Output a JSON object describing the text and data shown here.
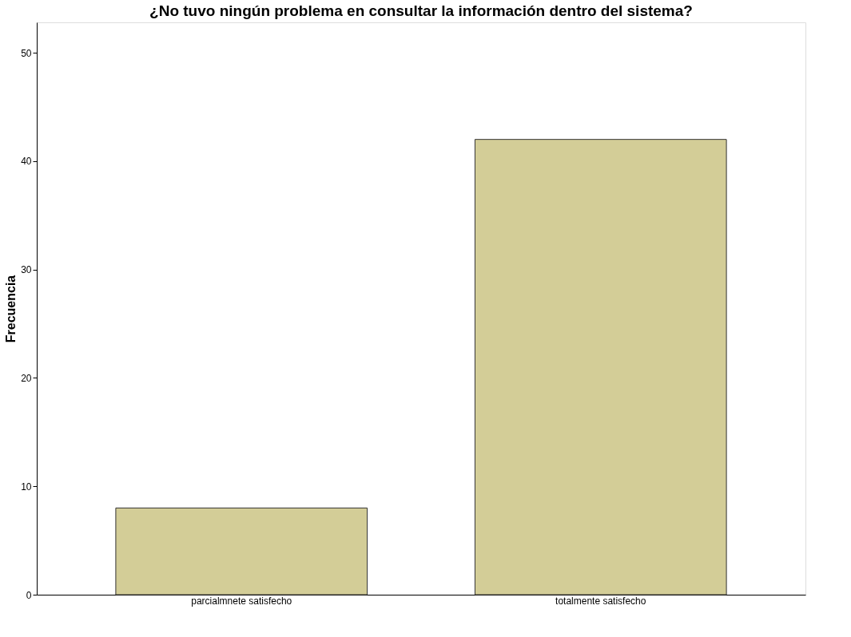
{
  "chart_data": {
    "type": "bar",
    "title": "¿No tuvo ningún  problema en consultar la información dentro del sistema?",
    "ylabel": "Frecuencia",
    "categories": [
      "parcialmnete satisfecho",
      "totalmente satisfecho"
    ],
    "values": [
      8,
      42
    ],
    "color": "#d3cd97",
    "ylim": [
      0,
      52.8
    ],
    "yticks": [
      0,
      10,
      20,
      30,
      40,
      50
    ],
    "grid": false
  }
}
